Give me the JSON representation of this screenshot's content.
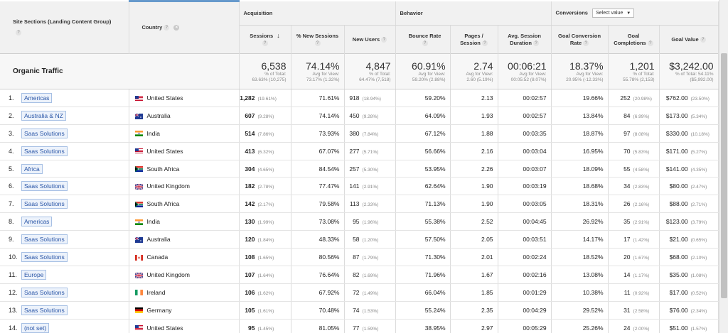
{
  "columns": {
    "landing_group": "Site Sections (Landing Content Group)",
    "country": "Country",
    "acquisition": "Acquisition",
    "behavior": "Behavior",
    "conversions": "Conversions",
    "conversions_select": "Select value",
    "sessions": "Sessions",
    "new_sessions": "% New Sessions",
    "new_users": "New Users",
    "bounce_rate": "Bounce Rate",
    "pages_session": "Pages / Session",
    "avg_duration": "Avg. Session Duration",
    "goal_conv_rate": "Goal Conversion Rate",
    "goal_completions": "Goal Completions",
    "goal_value": "Goal Value"
  },
  "summary": {
    "label": "Organic Traffic",
    "sessions": {
      "value": "6,538",
      "sub1": "% of Total:",
      "sub2": "63.63% (10,275)"
    },
    "new_sessions": {
      "value": "74.14%",
      "sub1": "Avg for View:",
      "sub2": "73.17% (1.32%)"
    },
    "new_users": {
      "value": "4,847",
      "sub1": "% of Total:",
      "sub2": "64.47% (7,518)"
    },
    "bounce_rate": {
      "value": "60.91%",
      "sub1": "Avg for View:",
      "sub2": "59.20% (2.88%)"
    },
    "pages_session": {
      "value": "2.74",
      "sub1": "Avg for View:",
      "sub2": "2.60 (5.19%)"
    },
    "avg_duration": {
      "value": "00:06:21",
      "sub1": "Avg for View:",
      "sub2": "00:05:52 (8.07%)"
    },
    "goal_conv_rate": {
      "value": "18.37%",
      "sub1": "Avg for View:",
      "sub2": "20.95% (-12.33%)"
    },
    "goal_completions": {
      "value": "1,201",
      "sub1": "% of Total:",
      "sub2": "55.78% (2,153)"
    },
    "goal_value": {
      "value": "$3,242.00",
      "sub1": "% of Total: 54.11%",
      "sub2": "($5,992.00)"
    }
  },
  "rows": [
    {
      "index": "1.",
      "group": "Americas",
      "country": "United States",
      "flag": "us",
      "sessions": "1,282",
      "sessions_pct": "(19.61%)",
      "new_sessions": "71.61%",
      "new_users": "918",
      "new_users_pct": "(18.94%)",
      "bounce": "59.20%",
      "pages": "2.13",
      "duration": "00:02:57",
      "conv_rate": "19.66%",
      "completions": "252",
      "completions_pct": "(20.98%)",
      "value": "$762.00",
      "value_pct": "(23.50%)"
    },
    {
      "index": "2.",
      "group": "Australia & NZ",
      "country": "Australia",
      "flag": "au",
      "sessions": "607",
      "sessions_pct": "(9.28%)",
      "new_sessions": "74.14%",
      "new_users": "450",
      "new_users_pct": "(9.28%)",
      "bounce": "64.09%",
      "pages": "1.93",
      "duration": "00:02:57",
      "conv_rate": "13.84%",
      "completions": "84",
      "completions_pct": "(6.99%)",
      "value": "$173.00",
      "value_pct": "(5.34%)"
    },
    {
      "index": "3.",
      "group": "Saas Solutions",
      "country": "India",
      "flag": "in",
      "sessions": "514",
      "sessions_pct": "(7.86%)",
      "new_sessions": "73.93%",
      "new_users": "380",
      "new_users_pct": "(7.84%)",
      "bounce": "67.12%",
      "pages": "1.88",
      "duration": "00:03:35",
      "conv_rate": "18.87%",
      "completions": "97",
      "completions_pct": "(8.08%)",
      "value": "$330.00",
      "value_pct": "(10.18%)"
    },
    {
      "index": "4.",
      "group": "Saas Solutions",
      "country": "United States",
      "flag": "us",
      "sessions": "413",
      "sessions_pct": "(6.32%)",
      "new_sessions": "67.07%",
      "new_users": "277",
      "new_users_pct": "(5.71%)",
      "bounce": "56.66%",
      "pages": "2.16",
      "duration": "00:03:04",
      "conv_rate": "16.95%",
      "completions": "70",
      "completions_pct": "(5.83%)",
      "value": "$171.00",
      "value_pct": "(5.27%)"
    },
    {
      "index": "5.",
      "group": "Africa",
      "country": "South Africa",
      "flag": "za",
      "sessions": "304",
      "sessions_pct": "(4.65%)",
      "new_sessions": "84.54%",
      "new_users": "257",
      "new_users_pct": "(5.30%)",
      "bounce": "53.95%",
      "pages": "2.26",
      "duration": "00:03:07",
      "conv_rate": "18.09%",
      "completions": "55",
      "completions_pct": "(4.58%)",
      "value": "$141.00",
      "value_pct": "(4.35%)"
    },
    {
      "index": "6.",
      "group": "Saas Solutions",
      "country": "United Kingdom",
      "flag": "gb",
      "sessions": "182",
      "sessions_pct": "(2.78%)",
      "new_sessions": "77.47%",
      "new_users": "141",
      "new_users_pct": "(2.91%)",
      "bounce": "62.64%",
      "pages": "1.90",
      "duration": "00:03:19",
      "conv_rate": "18.68%",
      "completions": "34",
      "completions_pct": "(2.83%)",
      "value": "$80.00",
      "value_pct": "(2.47%)"
    },
    {
      "index": "7.",
      "group": "Saas Solutions",
      "country": "South Africa",
      "flag": "za",
      "sessions": "142",
      "sessions_pct": "(2.17%)",
      "new_sessions": "79.58%",
      "new_users": "113",
      "new_users_pct": "(2.33%)",
      "bounce": "71.13%",
      "pages": "1.90",
      "duration": "00:03:05",
      "conv_rate": "18.31%",
      "completions": "26",
      "completions_pct": "(2.16%)",
      "value": "$88.00",
      "value_pct": "(2.71%)"
    },
    {
      "index": "8.",
      "group": "Americas",
      "country": "India",
      "flag": "in",
      "sessions": "130",
      "sessions_pct": "(1.99%)",
      "new_sessions": "73.08%",
      "new_users": "95",
      "new_users_pct": "(1.96%)",
      "bounce": "55.38%",
      "pages": "2.52",
      "duration": "00:04:45",
      "conv_rate": "26.92%",
      "completions": "35",
      "completions_pct": "(2.91%)",
      "value": "$123.00",
      "value_pct": "(3.79%)"
    },
    {
      "index": "9.",
      "group": "Saas Solutions",
      "country": "Australia",
      "flag": "au",
      "sessions": "120",
      "sessions_pct": "(1.84%)",
      "new_sessions": "48.33%",
      "new_users": "58",
      "new_users_pct": "(1.20%)",
      "bounce": "57.50%",
      "pages": "2.05",
      "duration": "00:03:51",
      "conv_rate": "14.17%",
      "completions": "17",
      "completions_pct": "(1.42%)",
      "value": "$21.00",
      "value_pct": "(0.65%)"
    },
    {
      "index": "10.",
      "group": "Saas Solutions",
      "country": "Canada",
      "flag": "ca",
      "sessions": "108",
      "sessions_pct": "(1.65%)",
      "new_sessions": "80.56%",
      "new_users": "87",
      "new_users_pct": "(1.79%)",
      "bounce": "71.30%",
      "pages": "2.01",
      "duration": "00:02:24",
      "conv_rate": "18.52%",
      "completions": "20",
      "completions_pct": "(1.67%)",
      "value": "$68.00",
      "value_pct": "(2.10%)"
    },
    {
      "index": "11.",
      "group": "Europe",
      "country": "United Kingdom",
      "flag": "gb",
      "sessions": "107",
      "sessions_pct": "(1.64%)",
      "new_sessions": "76.64%",
      "new_users": "82",
      "new_users_pct": "(1.69%)",
      "bounce": "71.96%",
      "pages": "1.67",
      "duration": "00:02:16",
      "conv_rate": "13.08%",
      "completions": "14",
      "completions_pct": "(1.17%)",
      "value": "$35.00",
      "value_pct": "(1.08%)"
    },
    {
      "index": "12.",
      "group": "Saas Solutions",
      "country": "Ireland",
      "flag": "ie",
      "sessions": "106",
      "sessions_pct": "(1.62%)",
      "new_sessions": "67.92%",
      "new_users": "72",
      "new_users_pct": "(1.49%)",
      "bounce": "66.04%",
      "pages": "1.85",
      "duration": "00:01:29",
      "conv_rate": "10.38%",
      "completions": "11",
      "completions_pct": "(0.92%)",
      "value": "$17.00",
      "value_pct": "(0.52%)"
    },
    {
      "index": "13.",
      "group": "Saas Solutions",
      "country": "Germany",
      "flag": "de",
      "sessions": "105",
      "sessions_pct": "(1.61%)",
      "new_sessions": "70.48%",
      "new_users": "74",
      "new_users_pct": "(1.53%)",
      "bounce": "55.24%",
      "pages": "2.35",
      "duration": "00:04:29",
      "conv_rate": "29.52%",
      "completions": "31",
      "completions_pct": "(2.58%)",
      "value": "$76.00",
      "value_pct": "(2.34%)"
    },
    {
      "index": "14.",
      "group": "(not set)",
      "country": "United States",
      "flag": "us",
      "sessions": "95",
      "sessions_pct": "(1.45%)",
      "new_sessions": "81.05%",
      "new_users": "77",
      "new_users_pct": "(1.59%)",
      "bounce": "38.95%",
      "pages": "2.97",
      "duration": "00:05:29",
      "conv_rate": "25.26%",
      "completions": "24",
      "completions_pct": "(2.00%)",
      "value": "$51.00",
      "value_pct": "(1.57%)"
    }
  ],
  "colors": {
    "tag_bg": "#ecf2fb",
    "tag_border": "#a7c0e4",
    "tag_text": "#2a56a7",
    "header_bg": "#f1f1f1"
  }
}
